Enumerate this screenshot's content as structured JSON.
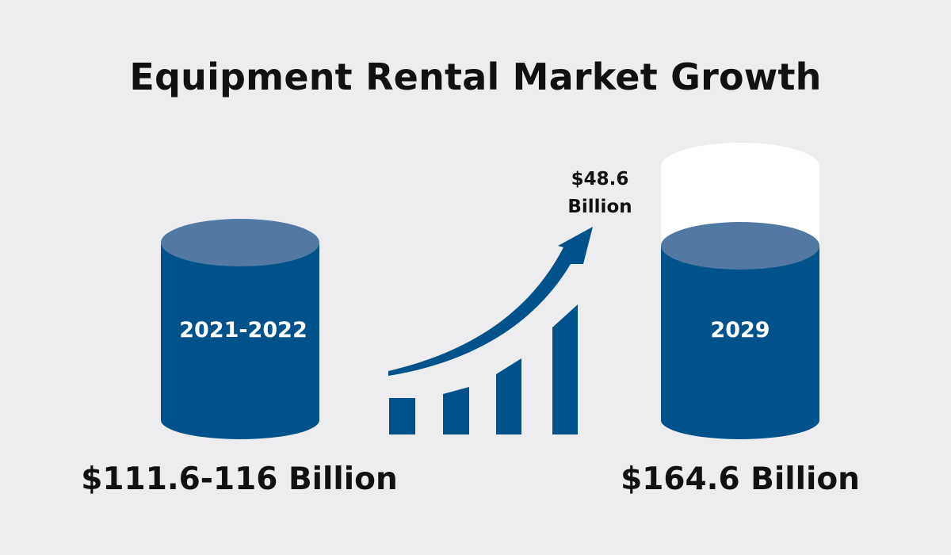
{
  "title": "Equipment Rental Market Growth",
  "colors": {
    "background": "#ededef",
    "cylinder_body": "#00538a",
    "cylinder_top": "#5279a3",
    "capacity_outline": "#ffffff",
    "arrow_and_bars": "#00538a",
    "text": "#111111"
  },
  "left_cylinder": {
    "label": "2021-2022",
    "value": "$111.6-116 Billion"
  },
  "growth": {
    "line1": "$48.6",
    "line2": "Billion",
    "icon": "rising-arrow-bar-chart-icon"
  },
  "right_cylinder": {
    "label": "2029",
    "value": "$164.6 Billion"
  }
}
